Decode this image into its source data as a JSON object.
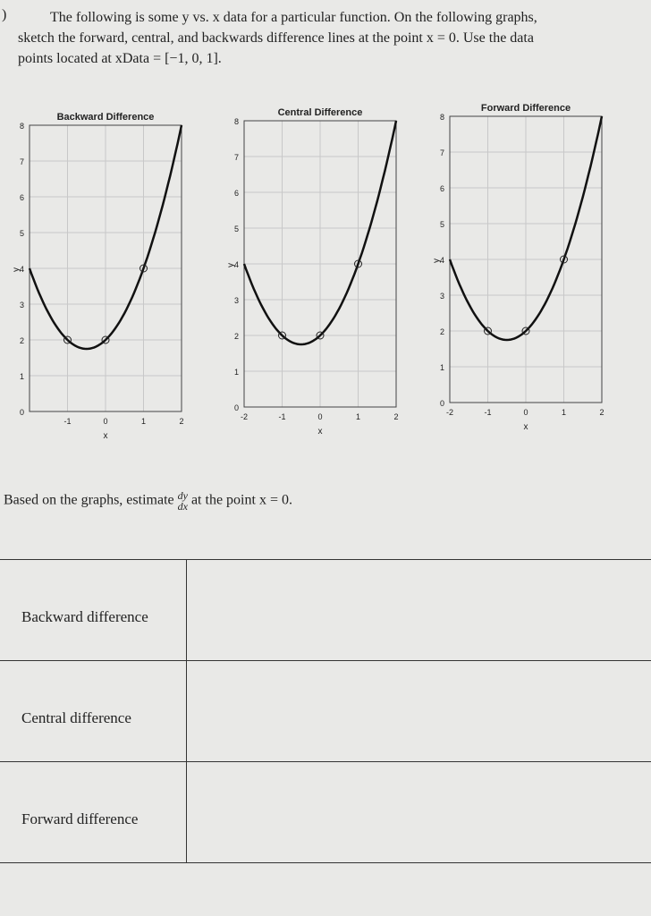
{
  "problem": {
    "marker": ")",
    "line1": "The following is some y vs. x data for a particular function. On the following graphs,",
    "line2": "sketch the forward, central, and backwards difference lines at the point x = 0.  Use the data",
    "line3": "points located at xData = [−1, 0, 1]."
  },
  "chart_data": [
    {
      "type": "line",
      "title": "Backward Difference",
      "xlabel": "x",
      "ylabel": "y",
      "xlim": [
        -2,
        2
      ],
      "ylim": [
        0,
        8
      ],
      "x_ticks": [
        "-1",
        "0",
        "1",
        "2"
      ],
      "y_ticks": [
        "0",
        "1",
        "2",
        "3",
        "4",
        "5",
        "6",
        "7",
        "8"
      ],
      "grid": true,
      "curve": "y = x^2 + x + 2",
      "points": [
        {
          "x": -1,
          "y": 2
        },
        {
          "x": 0,
          "y": 2
        },
        {
          "x": 1,
          "y": 4
        }
      ]
    },
    {
      "type": "line",
      "title": "Central Difference",
      "xlabel": "x",
      "ylabel": "y",
      "xlim": [
        -2,
        2
      ],
      "ylim": [
        0,
        8
      ],
      "x_ticks": [
        "-2",
        "-1",
        "0",
        "1",
        "2"
      ],
      "y_ticks": [
        "0",
        "1",
        "2",
        "3",
        "4",
        "5",
        "6",
        "7",
        "8"
      ],
      "grid": true,
      "curve": "y = x^2 + x + 2",
      "points": [
        {
          "x": -1,
          "y": 2
        },
        {
          "x": 0,
          "y": 2
        },
        {
          "x": 1,
          "y": 4
        }
      ]
    },
    {
      "type": "line",
      "title": "Forward Difference",
      "xlabel": "x",
      "ylabel": "y",
      "xlim": [
        -2,
        2
      ],
      "ylim": [
        0,
        8
      ],
      "x_ticks": [
        "-2",
        "-1",
        "0",
        "1",
        "2"
      ],
      "y_ticks": [
        "0",
        "1",
        "2",
        "3",
        "4",
        "5",
        "6",
        "7",
        "8"
      ],
      "grid": true,
      "curve": "y = x^2 + x + 2",
      "points": [
        {
          "x": -1,
          "y": 2
        },
        {
          "x": 0,
          "y": 2
        },
        {
          "x": 1,
          "y": 4
        }
      ]
    }
  ],
  "question": {
    "before": "Based on the graphs, estimate",
    "num": "dy",
    "den": "dx",
    "after": "at the point x = 0."
  },
  "table": {
    "rows": [
      {
        "label": "Backward difference",
        "answer": ""
      },
      {
        "label": "Central difference",
        "answer": ""
      },
      {
        "label": "Forward difference",
        "answer": ""
      }
    ]
  }
}
